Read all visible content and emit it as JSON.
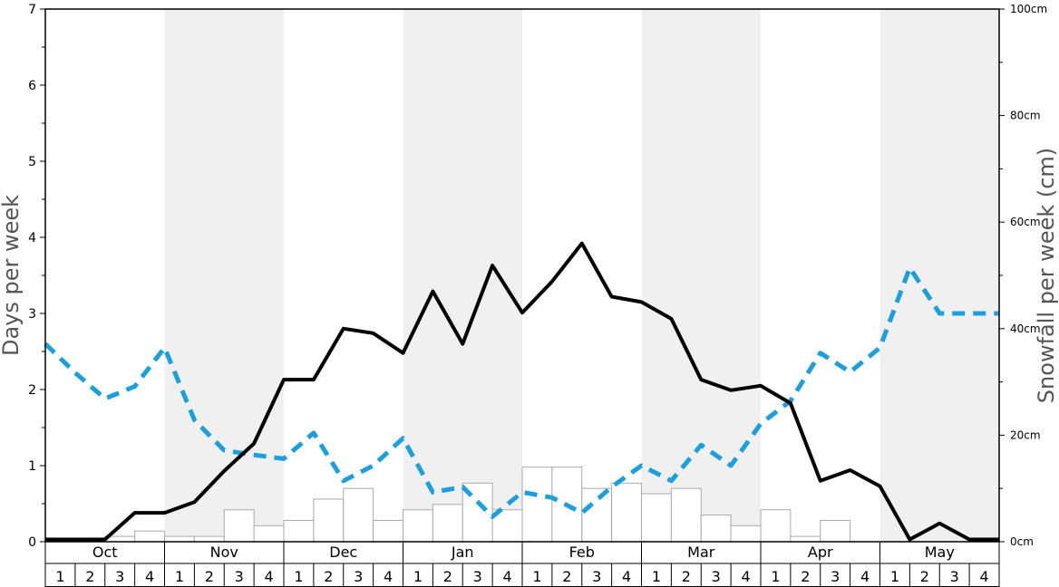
{
  "chart_data": {
    "type": "bar+line",
    "ylabel_left": "Days per week",
    "ylabel_right": "Snowfall per week (cm)",
    "ylim_left": [
      0,
      7
    ],
    "ylim_right": [
      0,
      100
    ],
    "left_ticks": [
      0,
      1,
      2,
      3,
      4,
      5,
      6,
      7
    ],
    "right_ticks": [
      "0cm",
      "20cm",
      "40cm",
      "60cm",
      "80cm",
      "100cm"
    ],
    "months": [
      "Oct",
      "Nov",
      "Dec",
      "Jan",
      "Feb",
      "Mar",
      "Apr",
      "May"
    ],
    "weeks": [
      "1",
      "2",
      "3",
      "4"
    ],
    "colors": {
      "shade": "#f0f0f0",
      "bar_stroke": "#aaaaaa",
      "black_line": "#000000",
      "blue_line": "#1a9fe0"
    },
    "snowfall_bars": [
      0,
      0,
      1.0,
      2.0,
      1.0,
      1.0,
      6.0,
      3.0,
      4.0,
      8.0,
      10.0,
      4.0,
      6.0,
      7.0,
      11.0,
      6.0,
      14.0,
      14.0,
      10.0,
      11.0,
      9.0,
      10.0,
      5.0,
      3.0,
      6.0,
      1.0,
      4.0,
      0,
      0,
      0,
      0,
      0
    ],
    "black_line": [
      0.03,
      0.03,
      0.03,
      0.38,
      0.38,
      0.52,
      0.93,
      1.29,
      2.13,
      2.13,
      2.8,
      2.74,
      2.48,
      3.29,
      2.6,
      3.63,
      3.01,
      3.42,
      3.92,
      3.22,
      3.15,
      2.93,
      2.13,
      1.99,
      2.05,
      1.82,
      0.8,
      0.94,
      0.73,
      0.03,
      0.24,
      0.03,
      0.03
    ],
    "blue_line": [
      2.6,
      2.22,
      1.88,
      2.04,
      2.55,
      1.6,
      1.2,
      1.14,
      1.09,
      1.43,
      0.8,
      1.0,
      1.36,
      0.65,
      0.72,
      0.33,
      0.65,
      0.58,
      0.38,
      0.72,
      1.0,
      0.8,
      1.27,
      1.0,
      1.55,
      1.85,
      2.48,
      2.23,
      2.55,
      3.6,
      3.0,
      3.0,
      3.0
    ]
  }
}
